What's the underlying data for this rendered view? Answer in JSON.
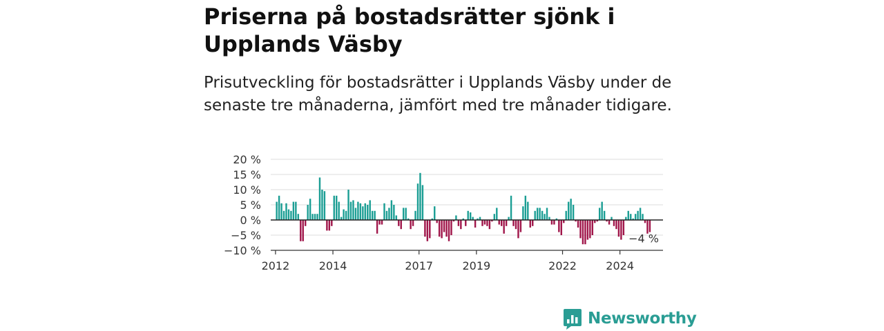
{
  "title": "Priserna på bostadsrätter sjönk i Upplands Väsby",
  "subtitle": "Prisutveckling för bostadsrätter i Upplands Väsby under de senaste tre månaderna, jämfört med tre månader tidigare.",
  "brand": {
    "name": "Newsworthy",
    "color": "#2a9d94"
  },
  "colors": {
    "positive": "#1b9e94",
    "negative": "#a0164a"
  },
  "chart_data": {
    "type": "bar",
    "title": "",
    "xlabel": "",
    "ylabel": "",
    "ylim": [
      -10,
      20
    ],
    "y_ticks": [
      20,
      15,
      10,
      5,
      0,
      -5,
      -10
    ],
    "y_tick_labels": [
      "20 %",
      "15 %",
      "10 %",
      "5 %",
      "0 %",
      "−5 %",
      "−10 %"
    ],
    "x_range": [
      "2011-11",
      "2025-07"
    ],
    "x_ticks": [
      "2012-01",
      "2014-01",
      "2017-01",
      "2019-01",
      "2022-01",
      "2024-01"
    ],
    "x_tick_labels": [
      "2012",
      "2014",
      "2017",
      "2019",
      "2022",
      "2024"
    ],
    "grid": true,
    "annotation": "−4 %",
    "start": "2012-01",
    "values": [
      6,
      8,
      5.5,
      3,
      5.5,
      3.5,
      3,
      6,
      6,
      2,
      -7,
      -7,
      -2,
      5,
      7,
      2,
      2,
      2,
      14,
      10,
      9.5,
      -3.5,
      -3.5,
      -2,
      8,
      8,
      6,
      1,
      3.5,
      3,
      10,
      6,
      6.5,
      4,
      6,
      5.5,
      4.5,
      5.5,
      5,
      6.5,
      3,
      3,
      -4.5,
      -1.5,
      -1.5,
      5.5,
      3,
      4,
      6.5,
      5,
      1.5,
      -2,
      -3,
      4,
      4,
      0.5,
      -3,
      -2,
      3,
      12,
      15.5,
      11.5,
      -5.5,
      -7,
      -6,
      0.5,
      4.5,
      -1,
      -5.5,
      -6,
      -4,
      -5.5,
      -7,
      -5,
      -0.5,
      1.5,
      -2,
      -3,
      0.5,
      -2,
      3,
      2.5,
      1,
      -2.5,
      0.5,
      1,
      -2,
      -1.5,
      -2,
      -3,
      -0.5,
      2,
      4,
      -1.5,
      -2,
      -4.5,
      -2,
      1,
      8,
      -2,
      -3,
      -6,
      -4,
      4.5,
      8,
      6,
      -2.5,
      -2,
      3,
      4,
      4,
      3,
      2,
      4,
      1,
      -1.5,
      -1.5,
      0.5,
      -4,
      -5,
      -1,
      3,
      6,
      7,
      5,
      -0.5,
      -2.5,
      -6,
      -8,
      -8,
      -6.5,
      -6,
      -5,
      -1,
      -0.5,
      4,
      6,
      3,
      -0.5,
      -1.5,
      1,
      -2,
      -3,
      -5.5,
      -6.5,
      -5,
      1,
      3,
      2,
      0.5,
      2,
      3,
      4,
      2,
      -1,
      -4.5,
      -4
    ]
  }
}
